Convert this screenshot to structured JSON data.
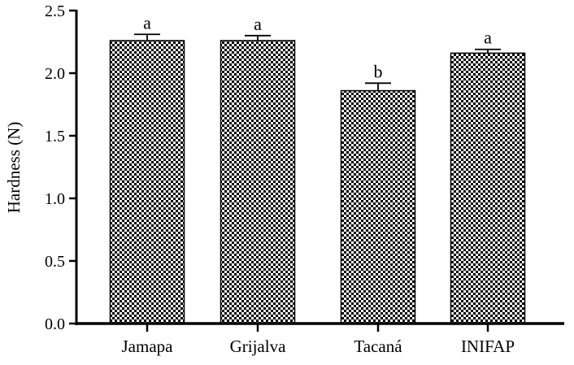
{
  "chart_data": {
    "type": "bar",
    "title": "",
    "xlabel": "",
    "ylabel": "Hardness (N)",
    "ylim": [
      0,
      2.5
    ],
    "yticks": [
      "0.0",
      "0.5",
      "1.0",
      "1.5",
      "2.0",
      "2.5"
    ],
    "grid": false,
    "legend": "none",
    "bar_fill": "checkerboard",
    "categories": [
      "Jamapa",
      "Grijalva",
      "Tacaná",
      "INIFAP"
    ],
    "values": [
      2.26,
      2.26,
      1.86,
      2.16
    ],
    "errors": [
      0.05,
      0.04,
      0.06,
      0.03
    ],
    "annotations": [
      "a",
      "a",
      "b",
      "a"
    ]
  }
}
